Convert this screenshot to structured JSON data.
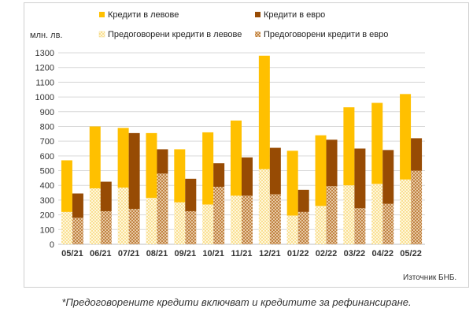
{
  "chart_data": {
    "type": "bar",
    "ylabel": "млн. лв.",
    "ylim": [
      0,
      1300
    ],
    "ytick_step": 100,
    "categories": [
      "05/21",
      "06/21",
      "07/21",
      "08/21",
      "09/21",
      "10/21",
      "11/21",
      "12/21",
      "01/22",
      "02/22",
      "03/22",
      "04/22",
      "05/22"
    ],
    "groups": [
      {
        "stack": "BGN",
        "series": [
          {
            "name": "Предоговорени кредити в левове",
            "color": "#fff0c2",
            "pattern": "dots",
            "values": [
              220,
              380,
              385,
              315,
              285,
              270,
              330,
              510,
              195,
              260,
              400,
              410,
              440
            ]
          },
          {
            "name": "Кредити в левове",
            "color": "#ffc000",
            "pattern": "solid",
            "values": [
              350,
              420,
              405,
              440,
              360,
              490,
              510,
              770,
              440,
              480,
              530,
              550,
              580
            ]
          }
        ]
      },
      {
        "stack": "EUR",
        "series": [
          {
            "name": "Предоговорени кредити в евро",
            "color": "#c07020",
            "pattern": "crosshatch",
            "values": [
              180,
              225,
              240,
              480,
              225,
              390,
              330,
              340,
              220,
              395,
              245,
              275,
              500
            ]
          },
          {
            "name": "Кредити в евро",
            "color": "#974b04",
            "pattern": "solid",
            "values": [
              165,
              200,
              515,
              165,
              220,
              160,
              260,
              315,
              150,
              315,
              405,
              365,
              220
            ]
          }
        ]
      }
    ],
    "legend": [
      "Кредити в левове",
      "Кредити в евро",
      "Предоговорени кредити в левове",
      "Предоговорени кредити в евро"
    ],
    "legend_position": "top",
    "grid": true,
    "source": "Източник БНБ."
  },
  "colors": {
    "bgn_solid": "#ffc000",
    "bgn_dots_bg": "#fff7dc",
    "bgn_dots_fg": "#f5cf60",
    "eur_solid": "#974b04",
    "eur_hatch_bg": "#f3ddc0",
    "eur_hatch_fg": "#b8742e",
    "grid": "#d9d9d9"
  },
  "footnote": "*Предоговорените кредити включват и кредитите за рефинансиране."
}
